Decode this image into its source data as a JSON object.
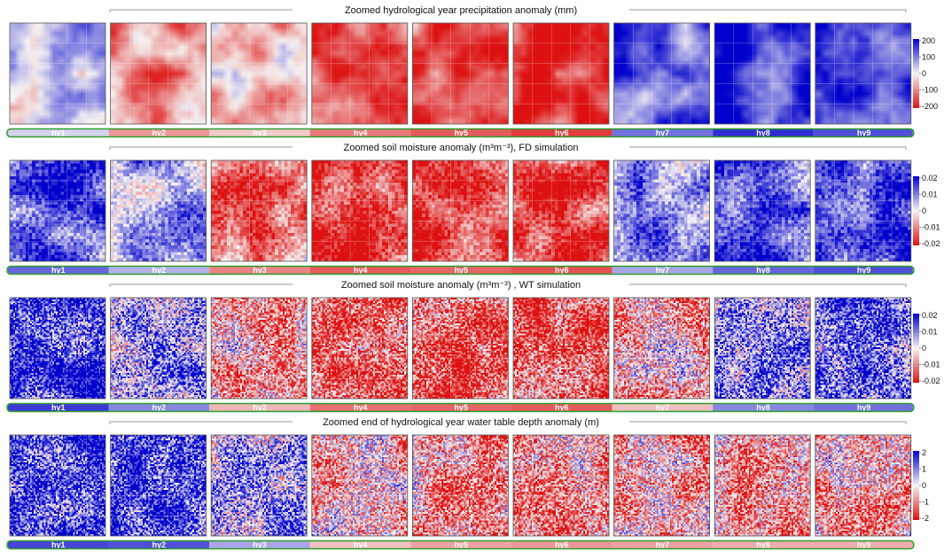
{
  "rows": [
    {
      "title": "Zoomed hydrological year  precipitation anomaly (mm)",
      "texture": "smooth",
      "values": [
        0.15,
        -0.45,
        -0.2,
        -0.6,
        -0.75,
        -0.9,
        0.6,
        0.9,
        0.75
      ],
      "legend": {
        "ticks": [
          "200",
          "100",
          "0",
          "-100",
          "-200"
        ]
      }
    },
    {
      "title": "Zoomed soil moisture anomaly (m³m⁻³), FD  simulation",
      "texture": "blocky",
      "values": [
        0.65,
        0.3,
        -0.55,
        -0.75,
        -0.7,
        -0.8,
        0.35,
        0.65,
        0.75
      ],
      "legend": {
        "ticks": [
          "0.02",
          "0.01",
          "0",
          "-0.01",
          "-0.02"
        ]
      }
    },
    {
      "title": "Zoomed soil moisture anomaly (m³m⁻³) , WT simulation",
      "texture": "speckled",
      "values": [
        0.85,
        0.5,
        -0.3,
        -0.65,
        -0.7,
        -0.75,
        -0.25,
        0.5,
        0.6
      ],
      "legend": {
        "ticks": [
          "0.02",
          "0.01",
          "0",
          "-0.01",
          "-0.02"
        ]
      }
    },
    {
      "title": "Zoomed end of hydrological year water table depth anomaly (m)",
      "texture": "speckled",
      "values": [
        0.8,
        0.75,
        0.35,
        -0.25,
        -0.4,
        -0.45,
        -0.4,
        -0.35,
        -0.35
      ],
      "legend": {
        "ticks": [
          "2",
          "1",
          "0",
          "-1",
          "-2"
        ]
      }
    }
  ],
  "years": [
    "hy1",
    "hy2",
    "hy3",
    "hy4",
    "hy5",
    "hy6",
    "hy7",
    "hy8",
    "hy9"
  ],
  "colors": {
    "positive": "#0000cc",
    "negative": "#dd1111",
    "zero": "#f6f3f3",
    "bar_outline": "#2e9e2e",
    "bracket": "#999999"
  }
}
